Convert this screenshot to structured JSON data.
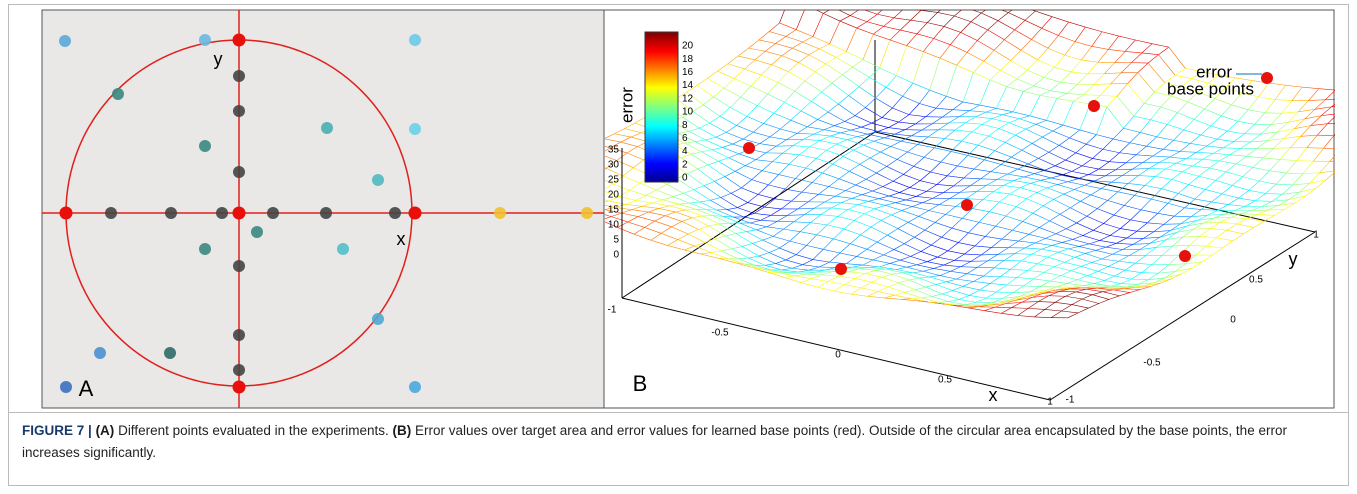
{
  "panel_a": {
    "x_label": "x",
    "y_label": "y",
    "letter": "A"
  },
  "panel_b": {
    "letter": "B",
    "colorbar_label": "error",
    "colorbar_ticks": [
      "0",
      "2",
      "4",
      "6",
      "8",
      "10",
      "12",
      "14",
      "16",
      "18",
      "20"
    ],
    "z_ticks": [
      "35",
      "30",
      "25",
      "20",
      "15",
      "10",
      "5",
      "0"
    ],
    "x_ticks": [
      "-1",
      "-0.5",
      "0",
      "0.5",
      "1"
    ],
    "y_ticks": [
      "-1",
      "-0.5",
      "0",
      "0.5",
      "1"
    ],
    "x_label": "x",
    "y_label": "y",
    "legend": [
      "error",
      "base points"
    ]
  },
  "caption": {
    "label": "FIGURE 7 |",
    "parts": [
      {
        "tag": "(A)",
        "text": " Different points evaluated in the experiments. "
      },
      {
        "tag": "(B)",
        "text": " Error values over target area and error values for learned base points (red). Outside of the circular area encapsulated by the base points, the error increases significantly."
      }
    ]
  }
}
